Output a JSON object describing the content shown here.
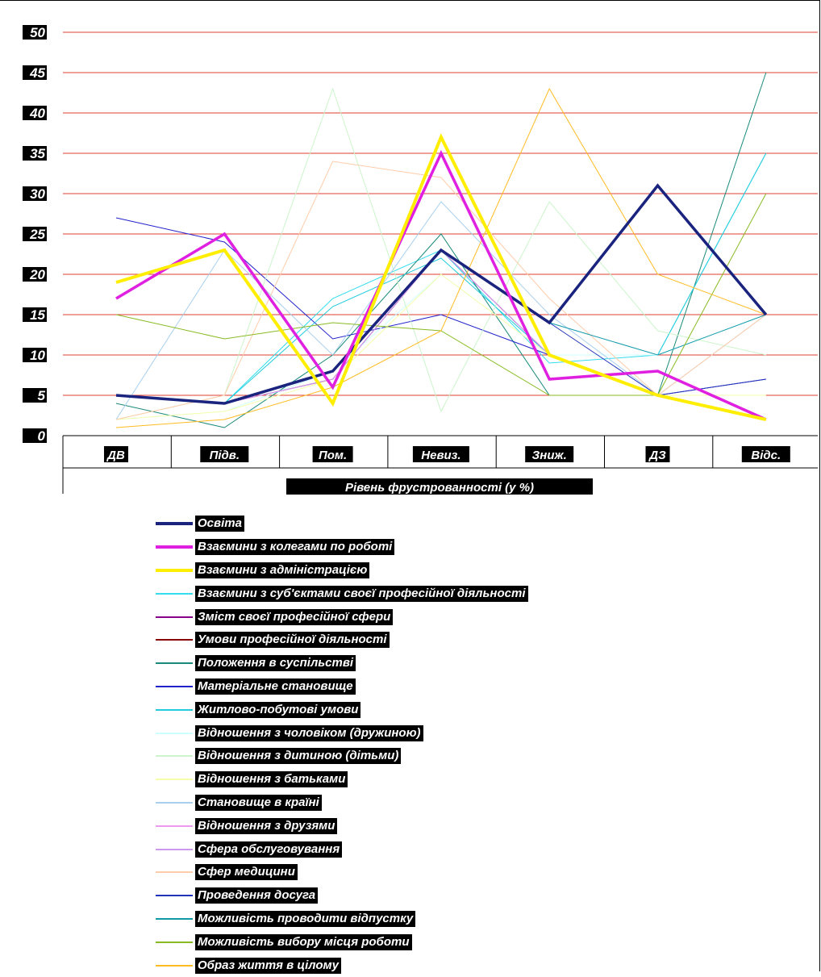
{
  "chart_data": {
    "type": "line",
    "categories": [
      "ДВ",
      "Підв.",
      "Пом.",
      "Невиз.",
      "Зниж.",
      "ДЗ",
      "Відс."
    ],
    "xlabel": "Рівень фрустрованності (у %)",
    "ylim": [
      0,
      50
    ],
    "yticks": [
      0,
      5,
      10,
      15,
      20,
      25,
      30,
      35,
      40,
      45,
      50
    ],
    "grid": true,
    "gridColor": "#e03c31",
    "legend_position": "bottom",
    "series": [
      {
        "name": "Освіта",
        "color": "#1a237e",
        "width": 3.5,
        "values": [
          5,
          4,
          8,
          23,
          14,
          31,
          15
        ]
      },
      {
        "name": "Взаємини з колегами по роботі",
        "color": "#e020e0",
        "width": 3.5,
        "values": [
          17,
          25,
          6,
          35,
          7,
          8,
          2
        ]
      },
      {
        "name": "Взаємини з адміністрацією",
        "color": "#ffee00",
        "width": 4,
        "values": [
          19,
          23,
          4,
          37,
          10,
          5,
          2
        ]
      },
      {
        "name": "Взаємини з суб'єктами своєї професійної діяльності",
        "color": "#33ddee",
        "width": 1,
        "values": [
          5,
          4,
          17,
          23,
          9,
          10,
          35
        ]
      },
      {
        "name": "Зміст своєї професійної сфери",
        "color": "#880088",
        "width": 1,
        "values": [
          5,
          4,
          7,
          23,
          10,
          5,
          2
        ]
      },
      {
        "name": "Умови професійної діяльності",
        "color": "#880000",
        "width": 1,
        "values": [
          5,
          4,
          7,
          23,
          10,
          5,
          2
        ]
      },
      {
        "name": "Положення в суспільстві",
        "color": "#1a8a7a",
        "width": 1,
        "values": [
          4,
          1,
          10,
          25,
          5,
          5,
          45
        ]
      },
      {
        "name": "Матеріальне становище",
        "color": "#2222cc",
        "width": 1,
        "values": [
          27,
          24,
          12,
          15,
          10,
          5,
          7
        ]
      },
      {
        "name": "Житлово-побутові умови",
        "color": "#22ccdd",
        "width": 1,
        "values": [
          5,
          4,
          16,
          22,
          10,
          10,
          35
        ]
      },
      {
        "name": "Відношення з чоловіком (дружиною)",
        "color": "#ccffff",
        "width": 1,
        "values": [
          2,
          3,
          8,
          20,
          10,
          10,
          15
        ]
      },
      {
        "name": "Відношення з дитиною (дітьми)",
        "color": "#ccf5cc",
        "width": 1,
        "values": [
          2,
          5,
          43,
          3,
          29,
          13,
          10
        ]
      },
      {
        "name": "Відношення з батьками",
        "color": "#f5ffaa",
        "width": 1,
        "values": [
          2,
          3,
          7,
          20,
          10,
          5,
          5
        ]
      },
      {
        "name": "Становище в країні",
        "color": "#a8d0ee",
        "width": 1,
        "values": [
          2,
          23,
          10,
          29,
          15,
          5,
          15
        ]
      },
      {
        "name": "Відношення з друзями",
        "color": "#ee99ee",
        "width": 1,
        "values": [
          5,
          4,
          7,
          23,
          10,
          5,
          2
        ]
      },
      {
        "name": "Сфера обслуговування",
        "color": "#cc99ee",
        "width": 1,
        "values": [
          5,
          4,
          7,
          23,
          10,
          5,
          2
        ]
      },
      {
        "name": "Сфер медицини",
        "color": "#ffccaa",
        "width": 1,
        "values": [
          2,
          5,
          34,
          32,
          17,
          5,
          15
        ]
      },
      {
        "name": "Проведення досуга",
        "color": "#2233bb",
        "width": 1,
        "values": [
          5,
          4,
          8,
          23,
          14,
          5,
          7
        ]
      },
      {
        "name": "Можливість проводити відпустку",
        "color": "#1199aa",
        "width": 1,
        "values": [
          5,
          4,
          8,
          23,
          14,
          10,
          15
        ]
      },
      {
        "name": "Можливість вибору місця роботи",
        "color": "#88bb22",
        "width": 1,
        "values": [
          15,
          12,
          14,
          13,
          5,
          5,
          30
        ]
      },
      {
        "name": "Образ життя в цілому",
        "color": "#ffbb22",
        "width": 1,
        "values": [
          1,
          2,
          6,
          13,
          43,
          20,
          15
        ]
      }
    ]
  }
}
